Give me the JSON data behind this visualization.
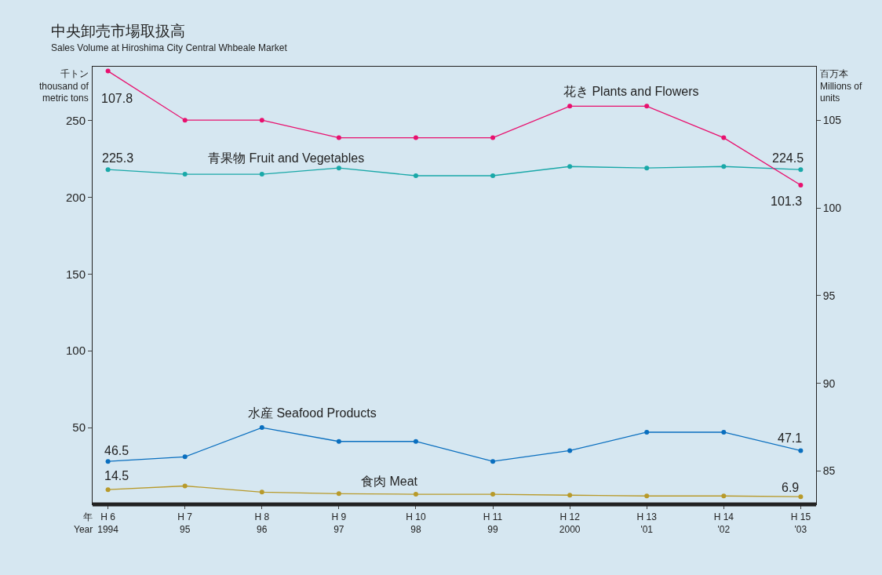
{
  "chart_data": {
    "type": "line",
    "title": "中央卸売市場取扱高",
    "subtitle": "Sales Volume at Hiroshima City Central Whbeale Market",
    "xlabel": "年\nYear",
    "ylabel": "千トン\nthousand of\nmetric tons",
    "y2label": "百万本\nMillions of\nunits",
    "categories": [
      "H 6\n1994",
      "H 7\n95",
      "H 8\n96",
      "H 9\n97",
      "H 10\n98",
      "H 11\n99",
      "H 12\n2000",
      "H 13\n'01",
      "H 14\n'02",
      "H 15\n'03"
    ],
    "series": [
      {
        "color": "#e8106e",
        "axis": "y2",
        "values": [
          107.8,
          105,
          105,
          104,
          104,
          104,
          105.8,
          105.8,
          104,
          101.3
        ]
      },
      {
        "color": "#19a8a8",
        "values": [
          218,
          215,
          215,
          219,
          214,
          214,
          220,
          219,
          220,
          218
        ]
      },
      {
        "color": "#0a6fbf",
        "values": [
          28,
          31,
          50,
          41,
          41,
          28,
          35,
          47,
          47,
          35
        ]
      },
      {
        "color": "#b89a2a",
        "values": [
          9.6,
          12,
          8,
          7,
          6.6,
          6.6,
          6,
          5.5,
          5.5,
          5
        ]
      }
    ],
    "annotations": [
      "花き Plants and Flowers",
      "青果物 Fruit and Vegetables",
      "水産 Seafood Products",
      "食肉 Meat",
      "107.8",
      "225.3",
      "46.5",
      "14.5",
      "224.5",
      "101.3",
      "47.1",
      "6.9"
    ],
    "ylim": [
      0,
      285
    ],
    "yticks": [
      50,
      100,
      150,
      200,
      250
    ],
    "y2lim": [
      83.1,
      108.05
    ],
    "y2ticks": [
      85,
      90,
      95,
      100,
      105
    ],
    "marker": "circle",
    "line_style": "solid"
  }
}
